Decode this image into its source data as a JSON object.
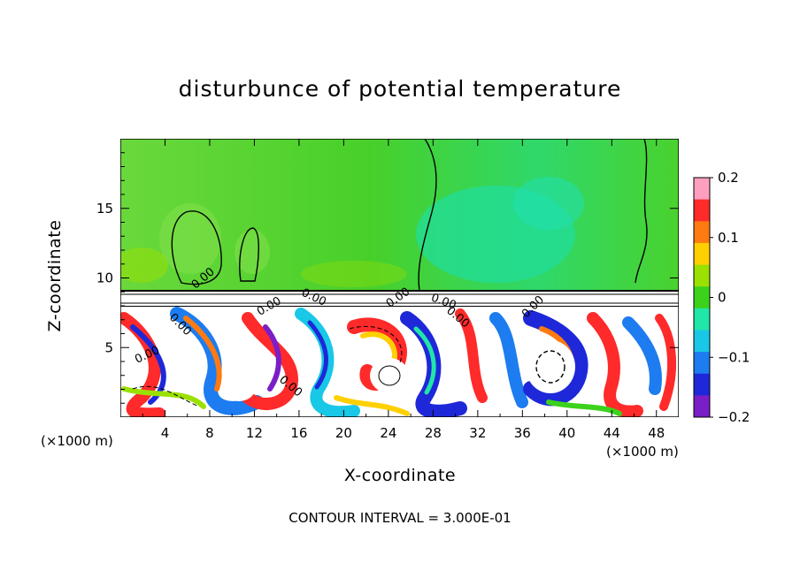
{
  "chart_data": {
    "type": "heatmap",
    "title": "disturbunce of potential temperature",
    "xlabel": "X-coordinate",
    "ylabel": "Z-coordinate",
    "x_unit_label": "(×1000 m)",
    "xlim": [
      0,
      50
    ],
    "ylim": [
      0,
      20
    ],
    "x_ticks": [
      4,
      8,
      12,
      16,
      20,
      24,
      28,
      32,
      36,
      40,
      44,
      48
    ],
    "y_ticks": [
      5,
      10,
      15
    ],
    "colorbar": {
      "range": [
        -0.2,
        0.2
      ],
      "tick_values": [
        0.2,
        0.1,
        0,
        -0.1,
        -0.2
      ],
      "tick_labels": [
        "0.2",
        "0.1",
        "0",
        "−0.1",
        "−0.2"
      ],
      "colors": [
        "#ff9fbf",
        "#ff2a2a",
        "#ff7a10",
        "#ffd000",
        "#9ae000",
        "#3cd21c",
        "#20e6a8",
        "#18c8e6",
        "#1c7cf0",
        "#1e28d8",
        "#7a1ec8"
      ]
    },
    "contour_labels": [
      "0.00",
      "0.00",
      "0.00",
      "0.00",
      "0.00",
      "0.00",
      "0.00",
      "0.00",
      "0.00",
      "0.00"
    ],
    "contour_interval": "CONTOUR INTERVAL = 3.000E-01"
  },
  "colors": {
    "upper_field": "#5ad23a",
    "upper_field_light": "#78e04a",
    "cyan_patch": "#22e0a0",
    "positive_strong": "#ff2a2a",
    "negative_strong": "#1e28d8",
    "neutral_white": "#ffffff"
  }
}
